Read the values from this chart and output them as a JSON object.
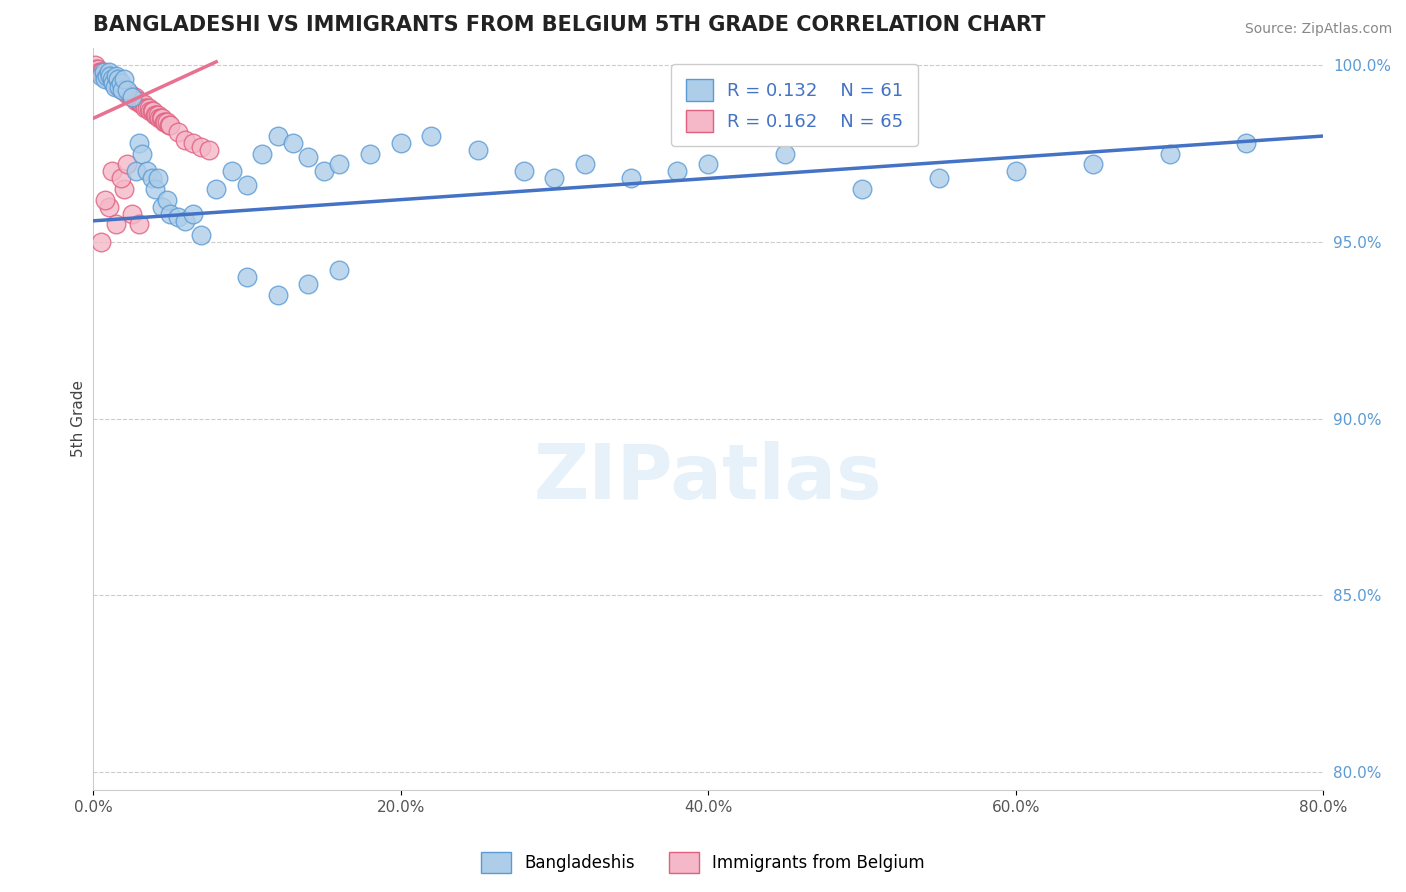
{
  "title": "BANGLADESHI VS IMMIGRANTS FROM BELGIUM 5TH GRADE CORRELATION CHART",
  "source": "Source: ZipAtlas.com",
  "ylabel": "5th Grade",
  "legend_label1": "Bangladeshis",
  "legend_label2": "Immigrants from Belgium",
  "R1": 0.132,
  "N1": 61,
  "R2": 0.162,
  "N2": 65,
  "xlim": [
    0.0,
    0.8
  ],
  "ylim": [
    0.795,
    1.005
  ],
  "xtick_labels": [
    "0.0%",
    "20.0%",
    "40.0%",
    "60.0%",
    "80.0%"
  ],
  "xtick_values": [
    0.0,
    0.2,
    0.4,
    0.6,
    0.8
  ],
  "ytick_labels": [
    "80.0%",
    "85.0%",
    "90.0%",
    "95.0%",
    "100.0%"
  ],
  "ytick_values": [
    0.8,
    0.85,
    0.9,
    0.95,
    1.0
  ],
  "color_blue": "#aecde8",
  "color_blue_edge": "#5b9bd5",
  "color_pink": "#f4b8c8",
  "color_pink_edge": "#e06080",
  "trendline_blue": "#4472c4",
  "trendline_pink": "#e87090",
  "blue_x": [
    0.005,
    0.007,
    0.008,
    0.009,
    0.01,
    0.011,
    0.012,
    0.013,
    0.014,
    0.015,
    0.016,
    0.017,
    0.018,
    0.019,
    0.02,
    0.022,
    0.025,
    0.028,
    0.03,
    0.032,
    0.035,
    0.038,
    0.04,
    0.042,
    0.045,
    0.048,
    0.05,
    0.055,
    0.06,
    0.065,
    0.07,
    0.08,
    0.09,
    0.1,
    0.11,
    0.12,
    0.13,
    0.14,
    0.15,
    0.16,
    0.18,
    0.2,
    0.22,
    0.25,
    0.28,
    0.3,
    0.32,
    0.35,
    0.38,
    0.4,
    0.45,
    0.5,
    0.55,
    0.6,
    0.65,
    0.7,
    0.75,
    0.1,
    0.12,
    0.14,
    0.16
  ],
  "blue_y": [
    0.997,
    0.998,
    0.996,
    0.997,
    0.998,
    0.997,
    0.996,
    0.995,
    0.994,
    0.997,
    0.996,
    0.994,
    0.995,
    0.993,
    0.996,
    0.993,
    0.991,
    0.97,
    0.978,
    0.975,
    0.97,
    0.968,
    0.965,
    0.968,
    0.96,
    0.962,
    0.958,
    0.957,
    0.956,
    0.958,
    0.952,
    0.965,
    0.97,
    0.966,
    0.975,
    0.98,
    0.978,
    0.974,
    0.97,
    0.972,
    0.975,
    0.978,
    0.98,
    0.976,
    0.97,
    0.968,
    0.972,
    0.968,
    0.97,
    0.972,
    0.975,
    0.965,
    0.968,
    0.97,
    0.972,
    0.975,
    0.978,
    0.94,
    0.935,
    0.938,
    0.942
  ],
  "pink_x": [
    0.001,
    0.002,
    0.003,
    0.004,
    0.005,
    0.006,
    0.007,
    0.008,
    0.009,
    0.01,
    0.011,
    0.012,
    0.013,
    0.014,
    0.015,
    0.016,
    0.017,
    0.018,
    0.019,
    0.02,
    0.021,
    0.022,
    0.023,
    0.024,
    0.025,
    0.026,
    0.027,
    0.028,
    0.029,
    0.03,
    0.031,
    0.032,
    0.033,
    0.034,
    0.035,
    0.036,
    0.037,
    0.038,
    0.039,
    0.04,
    0.041,
    0.042,
    0.043,
    0.044,
    0.045,
    0.046,
    0.047,
    0.048,
    0.049,
    0.05,
    0.055,
    0.06,
    0.065,
    0.07,
    0.075,
    0.005,
    0.01,
    0.015,
    0.02,
    0.025,
    0.03,
    0.008,
    0.012,
    0.018,
    0.022
  ],
  "pink_y": [
    1.0,
    0.999,
    0.999,
    0.998,
    0.998,
    0.998,
    0.997,
    0.997,
    0.997,
    0.996,
    0.996,
    0.996,
    0.995,
    0.995,
    0.995,
    0.994,
    0.994,
    0.994,
    0.993,
    0.993,
    0.993,
    0.992,
    0.992,
    0.992,
    0.991,
    0.991,
    0.991,
    0.99,
    0.99,
    0.99,
    0.989,
    0.989,
    0.989,
    0.988,
    0.988,
    0.988,
    0.987,
    0.987,
    0.987,
    0.986,
    0.986,
    0.986,
    0.985,
    0.985,
    0.985,
    0.984,
    0.984,
    0.984,
    0.983,
    0.983,
    0.981,
    0.979,
    0.978,
    0.977,
    0.976,
    0.95,
    0.96,
    0.955,
    0.965,
    0.958,
    0.955,
    0.962,
    0.97,
    0.968,
    0.972
  ],
  "blue_trend_x": [
    0.0,
    0.8
  ],
  "blue_trend_y": [
    0.956,
    0.98
  ],
  "pink_trend_x": [
    0.0,
    0.08
  ],
  "pink_trend_y": [
    0.985,
    1.001
  ]
}
